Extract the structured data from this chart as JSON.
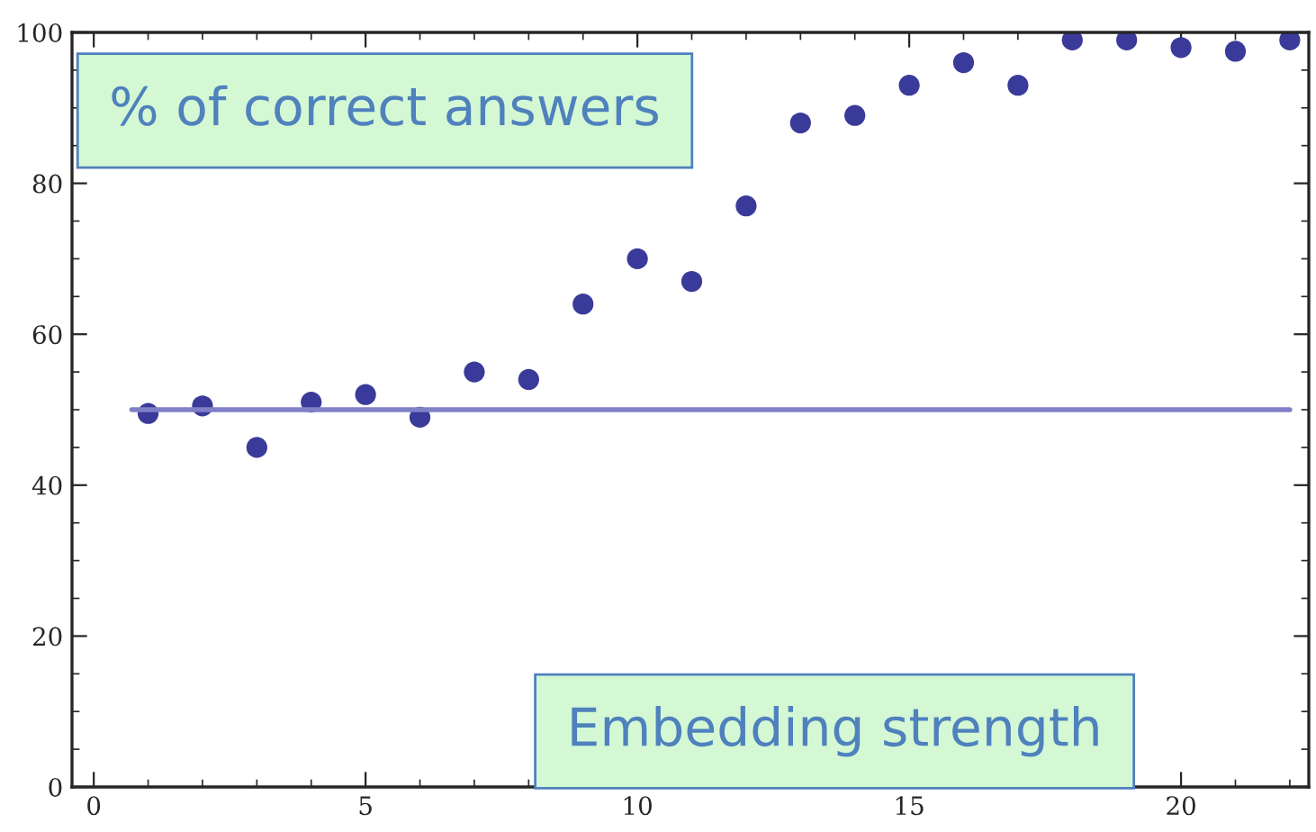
{
  "chart_data": {
    "type": "scatter",
    "xlabel": "Embedding strength",
    "ylabel": "% of correct answers",
    "x": [
      1,
      2,
      3,
      4,
      5,
      6,
      7,
      8,
      9,
      10,
      11,
      12,
      13,
      14,
      15,
      16,
      17,
      18,
      19,
      20,
      21,
      22
    ],
    "series": [
      {
        "color": "#3a3a9a",
        "values": [
          49.5,
          50.5,
          45,
          51,
          52,
          49,
          55,
          54,
          64,
          70,
          67,
          77,
          88,
          89,
          93,
          96,
          93,
          99,
          99,
          98,
          97.5,
          99
        ]
      }
    ],
    "xlim": [
      -0.4,
      22.35
    ],
    "xticks": [
      0,
      5,
      10,
      15,
      20
    ],
    "ylim": [
      0,
      100
    ],
    "yticks": [
      0,
      20,
      40,
      60,
      80,
      100
    ],
    "ref_lines": [
      {
        "axis": "y",
        "value": 50,
        "color": "#8080c8"
      }
    ],
    "marker": "circle",
    "grid": false,
    "legend": false
  }
}
